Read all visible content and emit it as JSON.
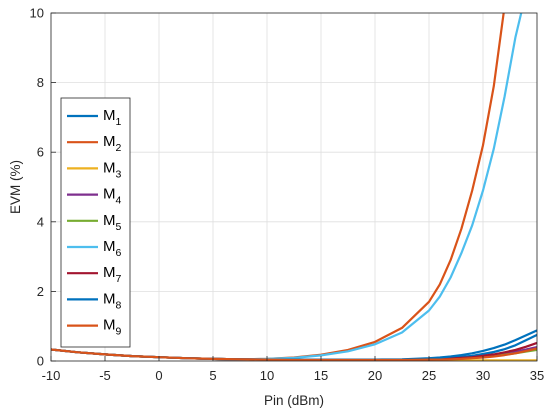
{
  "chart_data": {
    "type": "line",
    "xlabel": "Pin (dBm)",
    "ylabel": "EVM (%)",
    "xlim": [
      -10,
      35
    ],
    "ylim": [
      0,
      10
    ],
    "xticks": [
      "-10",
      "-5",
      "0",
      "5",
      "10",
      "15",
      "20",
      "25",
      "30",
      "35"
    ],
    "yticks": [
      "0",
      "2",
      "4",
      "6",
      "8",
      "10"
    ],
    "grid": true,
    "legend_position": "left",
    "x": [
      -10,
      -7.5,
      -5,
      -2.5,
      0,
      2.5,
      5,
      7.5,
      10,
      12.5,
      15,
      17.5,
      20,
      22.5,
      25,
      26,
      27,
      28,
      29,
      30,
      31,
      32,
      33,
      34,
      35
    ],
    "series": [
      {
        "name": "M",
        "subscript": "1",
        "color": "#0072BD",
        "values": [
          0.33,
          0.25,
          0.19,
          0.14,
          0.11,
          0.08,
          0.06,
          0.05,
          0.04,
          0.04,
          0.03,
          0.03,
          0.03,
          0.04,
          0.06,
          0.07,
          0.09,
          0.12,
          0.15,
          0.2,
          0.26,
          0.34,
          0.45,
          0.6,
          0.75
        ]
      },
      {
        "name": "M",
        "subscript": "2",
        "color": "#D95319",
        "values": [
          0.33,
          0.25,
          0.19,
          0.14,
          0.11,
          0.08,
          0.06,
          0.05,
          0.06,
          0.1,
          0.18,
          0.32,
          0.55,
          0.95,
          1.7,
          2.2,
          2.9,
          3.8,
          4.9,
          6.2,
          7.9,
          10.2,
          10.6,
          10.8,
          10.9
        ]
      },
      {
        "name": "M",
        "subscript": "3",
        "color": "#EDB120",
        "values": [
          0.33,
          0.25,
          0.19,
          0.14,
          0.11,
          0.08,
          0.06,
          0.05,
          0.04,
          0.03,
          0.02,
          0.02,
          0.02,
          0.02,
          0.02,
          0.02,
          0.02,
          0.02,
          0.02,
          0.02,
          0.02,
          0.02,
          0.02,
          0.02,
          0.02
        ]
      },
      {
        "name": "M",
        "subscript": "4",
        "color": "#7E2F8E",
        "values": [
          0.33,
          0.25,
          0.19,
          0.14,
          0.11,
          0.08,
          0.06,
          0.05,
          0.04,
          0.03,
          0.03,
          0.03,
          0.03,
          0.03,
          0.04,
          0.05,
          0.06,
          0.08,
          0.1,
          0.13,
          0.17,
          0.21,
          0.27,
          0.33,
          0.4
        ]
      },
      {
        "name": "M",
        "subscript": "5",
        "color": "#77AC30",
        "values": [
          0.33,
          0.25,
          0.19,
          0.14,
          0.11,
          0.08,
          0.06,
          0.05,
          0.04,
          0.03,
          0.03,
          0.03,
          0.03,
          0.03,
          0.04,
          0.05,
          0.06,
          0.07,
          0.09,
          0.11,
          0.14,
          0.18,
          0.22,
          0.27,
          0.32
        ]
      },
      {
        "name": "M",
        "subscript": "6",
        "color": "#4DBEEE",
        "values": [
          0.33,
          0.25,
          0.19,
          0.14,
          0.11,
          0.08,
          0.06,
          0.05,
          0.06,
          0.09,
          0.16,
          0.28,
          0.48,
          0.82,
          1.45,
          1.85,
          2.4,
          3.1,
          3.9,
          4.9,
          6.1,
          7.6,
          9.3,
          10.6,
          10.9
        ]
      },
      {
        "name": "M",
        "subscript": "7",
        "color": "#A2142F",
        "values": [
          0.33,
          0.25,
          0.19,
          0.14,
          0.11,
          0.08,
          0.06,
          0.05,
          0.04,
          0.03,
          0.03,
          0.03,
          0.03,
          0.03,
          0.04,
          0.05,
          0.07,
          0.09,
          0.11,
          0.15,
          0.19,
          0.25,
          0.32,
          0.41,
          0.52
        ]
      },
      {
        "name": "M",
        "subscript": "8",
        "color": "#0072BD",
        "values": [
          0.33,
          0.25,
          0.19,
          0.14,
          0.11,
          0.08,
          0.06,
          0.05,
          0.04,
          0.04,
          0.04,
          0.04,
          0.04,
          0.05,
          0.08,
          0.1,
          0.13,
          0.17,
          0.22,
          0.29,
          0.37,
          0.47,
          0.6,
          0.74,
          0.88
        ]
      },
      {
        "name": "M",
        "subscript": "9",
        "color": "#D95319",
        "values": [
          0.33,
          0.25,
          0.19,
          0.14,
          0.11,
          0.08,
          0.06,
          0.05,
          0.04,
          0.03,
          0.03,
          0.03,
          0.03,
          0.03,
          0.04,
          0.04,
          0.05,
          0.06,
          0.08,
          0.1,
          0.13,
          0.17,
          0.22,
          0.29,
          0.36
        ]
      }
    ]
  }
}
